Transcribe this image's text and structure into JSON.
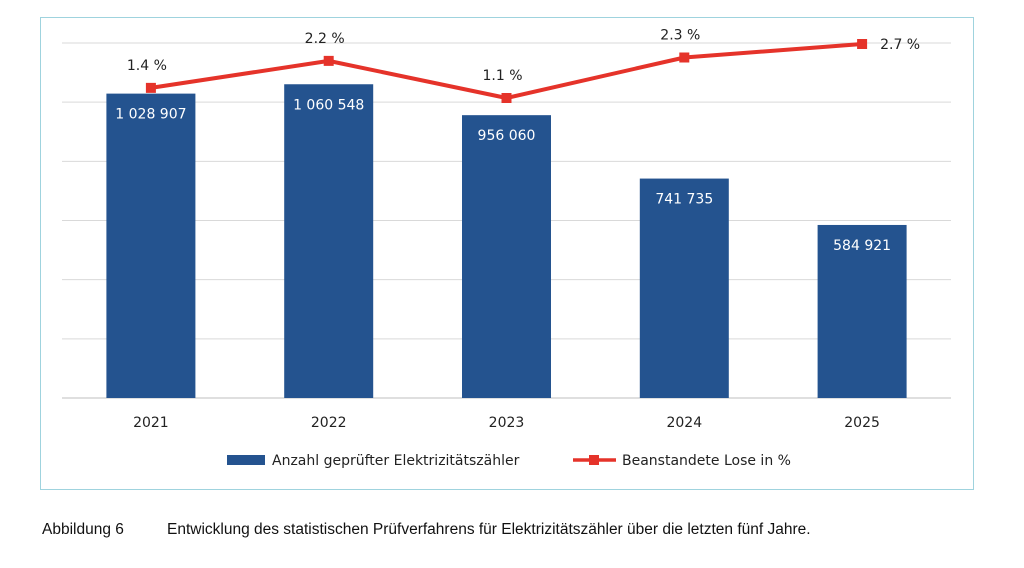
{
  "caption": {
    "number": "Abbildung 6",
    "text": "Entwicklung des statistischen Prüfverfahrens für Elektrizitätszähler über die letzten fünf Jahre."
  },
  "colors": {
    "bar": "#24538f",
    "line": "#e5332a",
    "grid": "#d9d9d9",
    "frame": "#9fd3de"
  },
  "chart_data": {
    "type": "bar",
    "title": "",
    "categories": [
      "2021",
      "2022",
      "2023",
      "2024",
      "2025"
    ],
    "ylim": [
      0,
      1200000
    ],
    "grid": true,
    "legend_position": "bottom",
    "series": [
      {
        "name": "Anzahl geprüfter Elektrizitätszähler",
        "type": "bar",
        "values": [
          1028907,
          1060548,
          956060,
          741735,
          584921
        ],
        "labels": [
          "1 028 907",
          "1 060 548",
          "956 060",
          "741 735",
          "584 921"
        ]
      },
      {
        "name": "Beanstandete Lose in %",
        "type": "line",
        "values": [
          1.4,
          2.2,
          1.1,
          2.3,
          2.7
        ],
        "labels": [
          "1.4 %",
          "2.2 %",
          "1.1 %",
          "2.3 %",
          "2.7 %"
        ]
      }
    ]
  }
}
